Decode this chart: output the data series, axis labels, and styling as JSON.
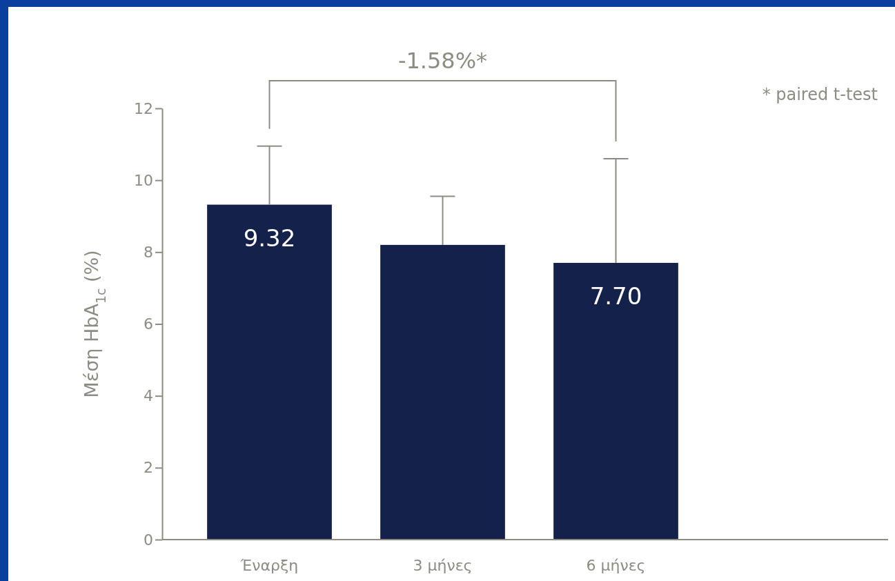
{
  "chart_data": {
    "type": "bar",
    "categories": [
      "Έναρξη",
      "3 μήνες",
      "6 μήνες"
    ],
    "values": [
      9.32,
      8.2,
      7.7
    ],
    "color": "#14214a",
    "errors": [
      [
        9.32,
        10.95
      ],
      [
        8.2,
        9.55
      ],
      [
        7.7,
        10.6
      ]
    ],
    "value_labels": [
      "9.32",
      null,
      "7.70"
    ],
    "ylabel": "Μέση HbA$_{1c}$ (%)",
    "ylim": [
      0,
      12
    ],
    "yticks": [
      0,
      2,
      4,
      6,
      8,
      10,
      12
    ],
    "grid": false,
    "annotations": [
      "-1.58%*",
      "* paired t-test"
    ]
  }
}
